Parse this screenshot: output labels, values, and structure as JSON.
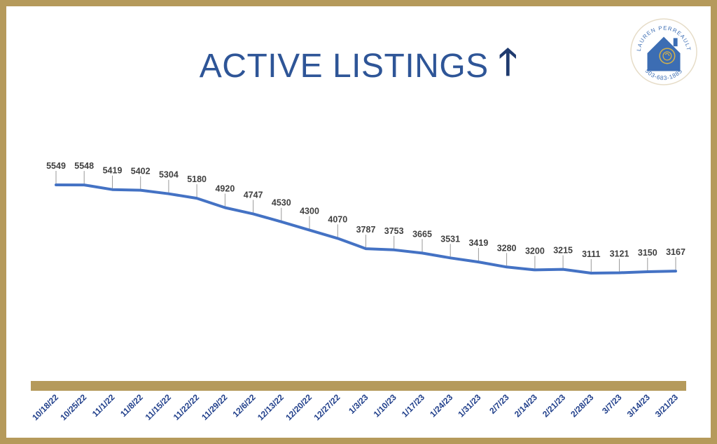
{
  "title": "ACTIVE LISTINGS",
  "title_arrow": "up-arrow-icon",
  "logo": {
    "name": "LAUREN PERREAULT",
    "phone": "503-683-1885",
    "icon": "house-rose-logo"
  },
  "colors": {
    "title": "#2e5597",
    "line": "#4472c4",
    "frame": "#b59a5b",
    "axis_band": "#b59a5b",
    "tick_label": "#1f3e8a",
    "data_label": "#404040"
  },
  "chart_data": {
    "type": "line",
    "categories": [
      "10/18/22",
      "10/25/22",
      "11/1/22",
      "11/8/22",
      "11/15/22",
      "11/22/22",
      "11/29/22",
      "12/6/22",
      "12/13/22",
      "12/20/22",
      "12/27/22",
      "1/3/23",
      "1/10/23",
      "1/17/23",
      "1/24/23",
      "1/31/23",
      "2/7/23",
      "2/14/23",
      "2/21/23",
      "2/28/23",
      "3/7/23",
      "3/14/23",
      "3/21/23"
    ],
    "series": [
      {
        "values": [
          5549,
          5548,
          5419,
          5402,
          5304,
          5180,
          4920,
          4747,
          4530,
          4300,
          4070,
          3787,
          3753,
          3665,
          3531,
          3419,
          3280,
          3200,
          3215,
          3111,
          3121,
          3150,
          3167
        ]
      }
    ],
    "data_labels": [
      "5549",
      "5548",
      "5419",
      "5402",
      "5304",
      "5180",
      "4920",
      "4747",
      "4530",
      "4300",
      "4070",
      "3787",
      "3753",
      "3665",
      "3531",
      "3419",
      "3280",
      "3200",
      "3215",
      "3111",
      "3121",
      "3150",
      "3167"
    ],
    "xlabel": "",
    "ylabel": "",
    "grid": false,
    "legend": "none"
  }
}
